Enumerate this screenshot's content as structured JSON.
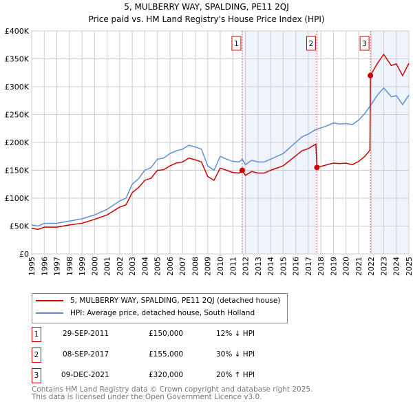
{
  "chart_data": {
    "type": "line",
    "title": "5, MULBERRY WAY, SPALDING, PE11 2QJ",
    "subtitle": "Price paid vs. HM Land Registry's House Price Index (HPI)",
    "xlim": [
      1995,
      2025
    ],
    "ylim": [
      0,
      400000
    ],
    "yticks": [
      {
        "v": 0,
        "l": "£0"
      },
      {
        "v": 50000,
        "l": "£50K"
      },
      {
        "v": 100000,
        "l": "£100K"
      },
      {
        "v": 150000,
        "l": "£150K"
      },
      {
        "v": 200000,
        "l": "£200K"
      },
      {
        "v": 250000,
        "l": "£250K"
      },
      {
        "v": 300000,
        "l": "£300K"
      },
      {
        "v": 350000,
        "l": "£350K"
      },
      {
        "v": 400000,
        "l": "£400K"
      }
    ],
    "xticks": [
      "1995",
      "1996",
      "1997",
      "1998",
      "1999",
      "2000",
      "2001",
      "2002",
      "2003",
      "2004",
      "2005",
      "2006",
      "2007",
      "2008",
      "2009",
      "2010",
      "2011",
      "2012",
      "2013",
      "2014",
      "2015",
      "2016",
      "2017",
      "2018",
      "2019",
      "2020",
      "2021",
      "2022",
      "2023",
      "2024",
      "2025"
    ],
    "grid": true,
    "series": [
      {
        "name": "5, MULBERRY WAY, SPALDING, PE11 2QJ (detached house)",
        "color": "#cc0000",
        "x": [
          1995,
          1995.5,
          1996,
          1997,
          1998,
          1999,
          2000,
          2001,
          2002,
          2002.5,
          2003,
          2003.5,
          2004,
          2004.5,
          2005,
          2005.5,
          2006,
          2006.5,
          2007,
          2007.5,
          2008,
          2008.5,
          2009,
          2009.5,
          2010,
          2010.5,
          2011,
          2011.5,
          2011.75,
          2012,
          2012.5,
          2013,
          2013.5,
          2014,
          2014.5,
          2015,
          2015.5,
          2016,
          2016.5,
          2017,
          2017.6,
          2017.69,
          2018,
          2018.5,
          2019,
          2019.5,
          2020,
          2020.5,
          2021,
          2021.5,
          2021.9,
          2021.94,
          2022.5,
          2023,
          2023.3,
          2023.6,
          2024,
          2024.5,
          2025
        ],
        "y": [
          46,
          44,
          48,
          48,
          52,
          55,
          62,
          70,
          84,
          88,
          110,
          119,
          132,
          136,
          150,
          151,
          158,
          163,
          165,
          172,
          169,
          165,
          139,
          132,
          154,
          150,
          146,
          145,
          150,
          141,
          148,
          145,
          145,
          150,
          154,
          158,
          167,
          176,
          185,
          189,
          197,
          155,
          157,
          160,
          163,
          162,
          163,
          160,
          166,
          175,
          186,
          320,
          342,
          358,
          348,
          338,
          341,
          320,
          342
        ]
      },
      {
        "name": "HPI: Average price, detached house, South Holland",
        "color": "#5b8fd4",
        "x": [
          1995,
          1995.5,
          1996,
          1997,
          1998,
          1999,
          2000,
          2001,
          2002,
          2002.5,
          2003,
          2003.5,
          2004,
          2004.5,
          2005,
          2005.5,
          2006,
          2006.5,
          2007,
          2007.5,
          2008,
          2008.5,
          2009,
          2009.5,
          2010,
          2010.5,
          2011,
          2011.5,
          2011.75,
          2012,
          2012.5,
          2013,
          2013.5,
          2014,
          2014.5,
          2015,
          2015.5,
          2016,
          2016.5,
          2017,
          2017.5,
          2018,
          2018.5,
          2019,
          2019.5,
          2020,
          2020.5,
          2021,
          2021.5,
          2022,
          2022.5,
          2023,
          2023.3,
          2023.6,
          2024,
          2024.5,
          2025
        ],
        "y": [
          52,
          50,
          55,
          55,
          59,
          63,
          70,
          80,
          95,
          100,
          125,
          135,
          150,
          155,
          170,
          172,
          180,
          185,
          188,
          195,
          192,
          188,
          158,
          150,
          175,
          170,
          166,
          165,
          170,
          160,
          168,
          165,
          165,
          170,
          175,
          180,
          190,
          200,
          210,
          215,
          222,
          226,
          230,
          235,
          233,
          234,
          232,
          240,
          252,
          268,
          285,
          298,
          290,
          282,
          284,
          268,
          285
        ]
      }
    ],
    "y_unit": "thousands GBP",
    "sales": [
      {
        "label": "1",
        "x": 2011.75,
        "price": 150000,
        "date": "29-SEP-2011",
        "price_text": "£150,000",
        "hpi": "12% ↓ HPI"
      },
      {
        "label": "2",
        "x": 2017.69,
        "price": 155000,
        "date": "08-SEP-2017",
        "price_text": "£155,000",
        "hpi": "30% ↓ HPI"
      },
      {
        "label": "3",
        "x": 2021.94,
        "price": 320000,
        "date": "09-DEC-2021",
        "price_text": "£320,000",
        "hpi": "20% ↑ HPI"
      }
    ],
    "legend_position": "below"
  },
  "footer": {
    "line1": "Contains HM Land Registry data © Crown copyright and database right 2025.",
    "line2": "This data is licensed under the Open Government Licence v3.0."
  }
}
